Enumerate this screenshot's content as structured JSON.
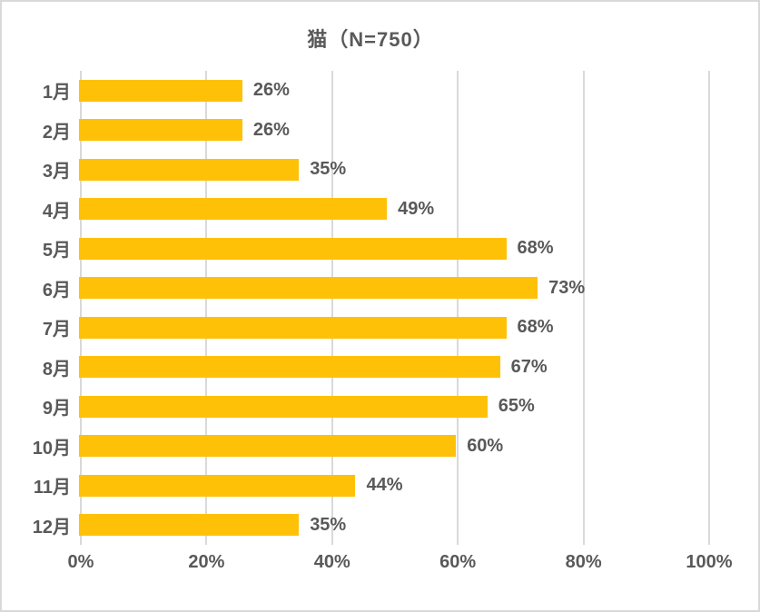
{
  "chart_data": {
    "type": "bar",
    "orientation": "horizontal",
    "title": "猫（N=750）",
    "categories": [
      "1月",
      "2月",
      "3月",
      "4月",
      "5月",
      "6月",
      "7月",
      "8月",
      "9月",
      "10月",
      "11月",
      "12月"
    ],
    "values": [
      26,
      26,
      35,
      49,
      68,
      73,
      68,
      67,
      65,
      60,
      44,
      35
    ],
    "value_suffix": "%",
    "data_labels": [
      "26%",
      "26%",
      "35%",
      "49%",
      "68%",
      "73%",
      "68%",
      "67%",
      "65%",
      "60%",
      "44%",
      "35%"
    ],
    "x_ticks": [
      "0%",
      "20%",
      "40%",
      "60%",
      "80%",
      "100%"
    ],
    "xlim": [
      0,
      100
    ],
    "xlabel": "",
    "ylabel": "",
    "grid": "vertical-on",
    "legend": "none",
    "colors": {
      "bar": "#FFC107",
      "text": "#595959",
      "gridline": "#D9D9D9",
      "background": "#FFFFFF",
      "border": "#D9D9D9"
    }
  }
}
